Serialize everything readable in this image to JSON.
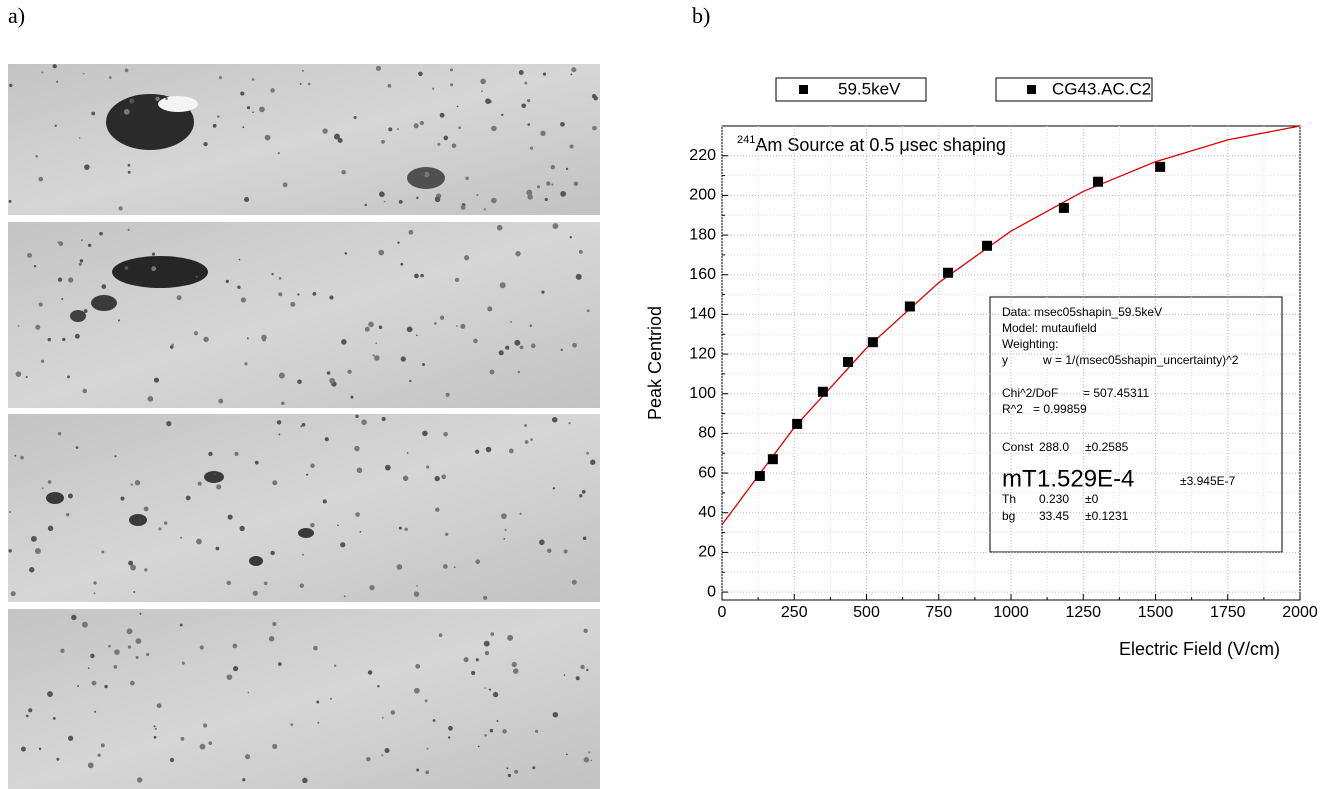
{
  "panel_labels": [
    "a)",
    "b)"
  ],
  "chart_data": {
    "type": "scatter",
    "ylabel": "Peak Centriod",
    "xlabel": "Electric Field (V/cm)",
    "annotation": {
      "superscript": "241",
      "text": "Am Source at 0.5 μsec shaping"
    },
    "xlim": [
      0,
      2000
    ],
    "xticks": [
      0,
      250,
      500,
      750,
      1000,
      1250,
      1500,
      1750,
      2000
    ],
    "ylim": [
      -4,
      235
    ],
    "yticks": [
      0,
      20,
      40,
      60,
      80,
      100,
      120,
      140,
      160,
      180,
      200,
      220
    ],
    "grid": true,
    "series": [
      {
        "name": "59.5keV",
        "color": "#000000",
        "x": [
          131,
          176,
          260,
          349,
          436,
          522,
          650,
          782,
          917,
          1183,
          1301,
          1516
        ],
        "values": [
          58.5,
          67,
          84.8,
          101,
          116,
          126,
          144,
          161,
          174.6,
          193.7,
          206.9,
          214.4
        ]
      }
    ],
    "extra_legend": {
      "name": "CG43.AC.C2",
      "color": "#000000"
    },
    "fit": {
      "color": "#e00000",
      "x": [
        0,
        250,
        500,
        750,
        1000,
        1250,
        1500,
        1750,
        2000
      ],
      "values": [
        34,
        83,
        123,
        156,
        182,
        202,
        217,
        228,
        235
      ]
    },
    "fit_box": {
      "lines": [
        "Data: msec05shapin_59.5keV",
        "Model: mutaufield",
        "Weighting:"
      ],
      "weight": [
        "y",
        "w = 1/(msec05shapin_uncertainty)^2"
      ],
      "stats": [
        [
          "Chi^2/DoF",
          "= 507.45311"
        ],
        [
          "R^2",
          "= 0.99859"
        ]
      ],
      "params": [
        [
          "Const",
          "288.0",
          "±0.2585"
        ],
        [
          "mT",
          "1.529E-4",
          "±3.945E-7"
        ],
        [
          "Th",
          "0.230",
          "±0"
        ],
        [
          "bg",
          "33.45",
          "±0.1231"
        ]
      ]
    }
  }
}
